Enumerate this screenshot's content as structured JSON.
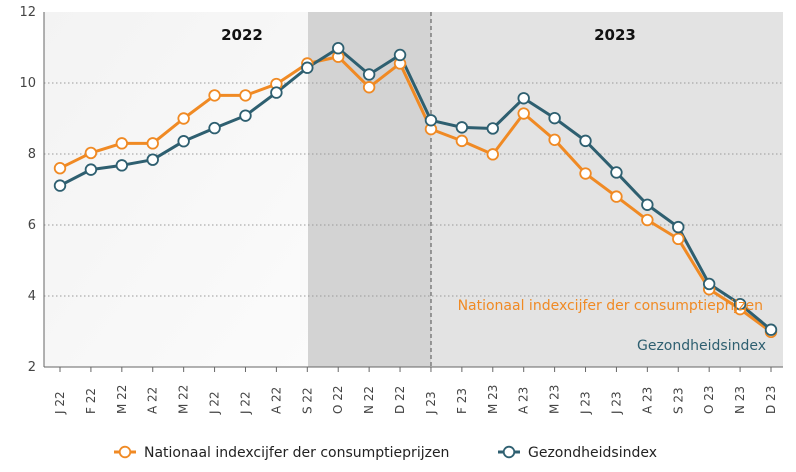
{
  "chart_data": {
    "type": "line",
    "categories": [
      "J 22",
      "F 22",
      "M 22",
      "A 22",
      "M 22",
      "J 22",
      "J 22",
      "A 22",
      "S 22",
      "O 22",
      "N 22",
      "D 22",
      "J 23",
      "F 23",
      "M 23",
      "A 23",
      "M 23",
      "J 23",
      "J 23",
      "A 23",
      "S 23",
      "O 23",
      "N 23",
      "D 23"
    ],
    "ylim": [
      2,
      12
    ],
    "yticks": [
      "2",
      "4",
      "6",
      "8",
      "10",
      "12"
    ],
    "grid": true,
    "periods": [
      {
        "label": "2022"
      },
      {
        "label": "2023"
      }
    ],
    "series": [
      {
        "name": "Nationaal indexcijfer der consumptieprijzen",
        "color": "#f08a24",
        "values": [
          7.6,
          8.03,
          8.3,
          8.3,
          9.0,
          9.65,
          9.65,
          9.97,
          10.55,
          10.74,
          9.88,
          10.55,
          8.7,
          8.37,
          7.99,
          9.14,
          8.4,
          7.45,
          6.8,
          6.14,
          5.61,
          4.19,
          3.63,
          2.99
        ]
      },
      {
        "name": "Gezondheidsindex",
        "color": "#2e5f70",
        "values": [
          7.11,
          7.56,
          7.68,
          7.84,
          8.36,
          8.73,
          9.08,
          9.73,
          10.43,
          10.98,
          10.24,
          10.79,
          8.95,
          8.75,
          8.72,
          9.57,
          9.01,
          8.37,
          7.48,
          6.57,
          5.94,
          4.34,
          3.77,
          3.05
        ]
      }
    ],
    "annotations": [
      {
        "text": "Nationaal indexcijfer der consumptieprijzen",
        "series": 0
      },
      {
        "text": "Gezondheidsindex",
        "series": 1
      }
    ],
    "legend": "bottom"
  }
}
